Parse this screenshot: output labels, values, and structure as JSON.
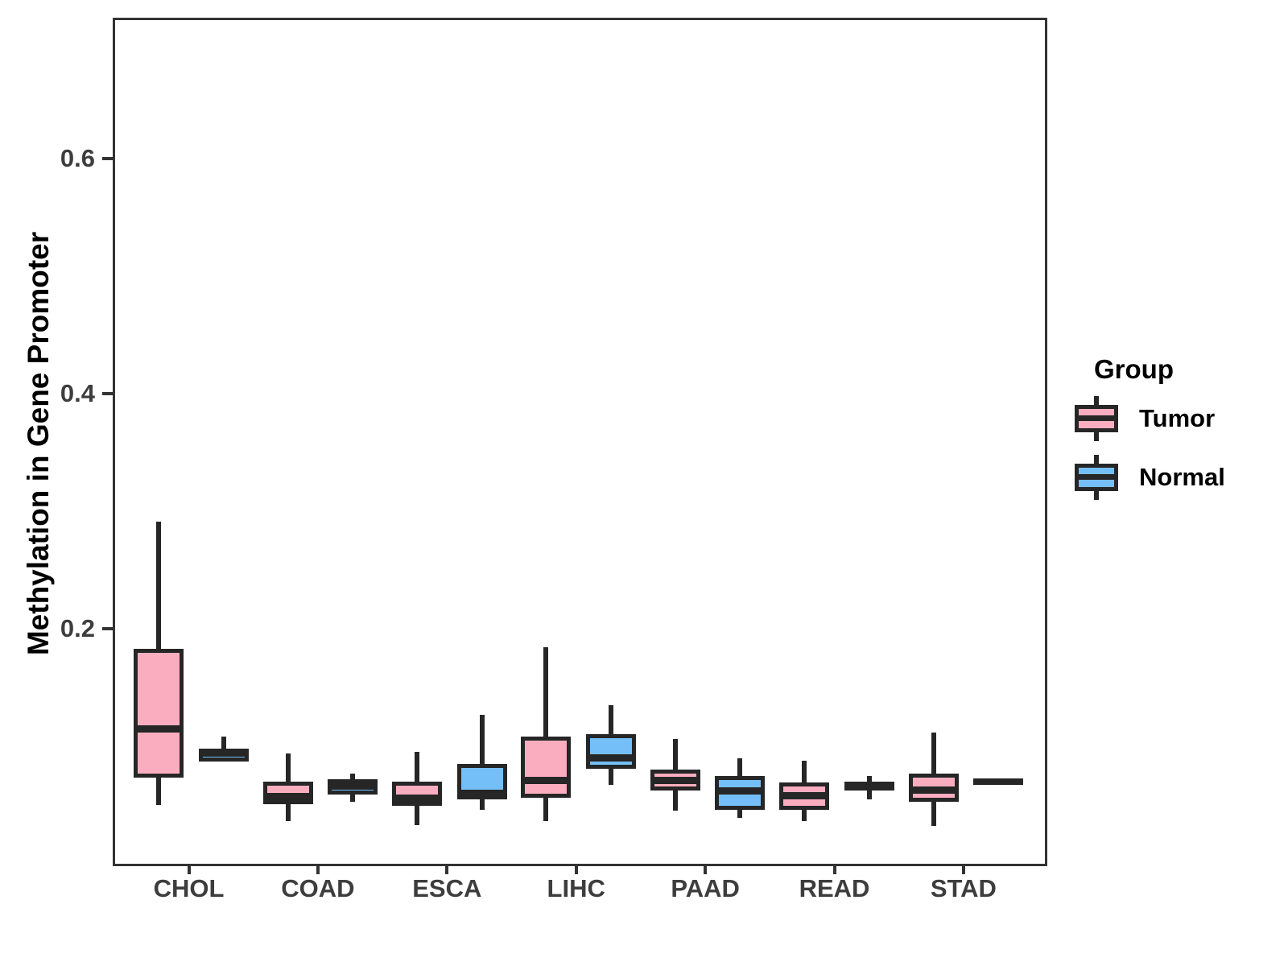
{
  "figure": {
    "background": "#ffffff",
    "panel_border_color": "#333333",
    "stroke_color": "#262626",
    "axis_text_color": "#3d3d3d"
  },
  "chart_data": {
    "type": "grouped_boxplot",
    "title": "",
    "xlabel": "",
    "ylabel": "Methylation in Gene Promoter",
    "categories": [
      "CHOL",
      "COAD",
      "ESCA",
      "LIHC",
      "PAAD",
      "READ",
      "STAD"
    ],
    "y_ticks": [
      0.2,
      0.4,
      0.6
    ],
    "y_tick_labels": [
      "0.2",
      "0.4",
      "0.6"
    ],
    "ylim": [
      0.002,
      0.72
    ],
    "grid": "off",
    "legend": {
      "title": "Group",
      "position": "right",
      "entries": [
        {
          "label": "Tumor",
          "color": "#FBADC0"
        },
        {
          "label": "Normal",
          "color": "#74BFF8"
        }
      ]
    },
    "series": [
      {
        "name": "Tumor",
        "color": "#FBADC0",
        "boxes": [
          {
            "category": "CHOL",
            "whisker_low": 0.052,
            "q1": 0.075,
            "median": 0.117,
            "q3": 0.185,
            "whisker_high": 0.293
          },
          {
            "category": "COAD",
            "whisker_low": 0.038,
            "q1": 0.053,
            "median": 0.059,
            "q3": 0.072,
            "whisker_high": 0.096
          },
          {
            "category": "ESCA",
            "whisker_low": 0.035,
            "q1": 0.051,
            "median": 0.058,
            "q3": 0.072,
            "whisker_high": 0.097
          },
          {
            "category": "LIHC",
            "whisker_low": 0.038,
            "q1": 0.058,
            "median": 0.073,
            "q3": 0.11,
            "whisker_high": 0.186
          },
          {
            "category": "PAAD",
            "whisker_low": 0.047,
            "q1": 0.064,
            "median": 0.073,
            "q3": 0.082,
            "whisker_high": 0.108
          },
          {
            "category": "READ",
            "whisker_low": 0.038,
            "q1": 0.048,
            "median": 0.06,
            "q3": 0.071,
            "whisker_high": 0.09
          },
          {
            "category": "STAD",
            "whisker_low": 0.034,
            "q1": 0.055,
            "median": 0.065,
            "q3": 0.079,
            "whisker_high": 0.114
          }
        ]
      },
      {
        "name": "Normal",
        "color": "#74BFF8",
        "boxes": [
          {
            "category": "CHOL",
            "whisker_low": 0.089,
            "q1": 0.089,
            "median": 0.096,
            "q3": 0.1,
            "whisker_high": 0.11
          },
          {
            "category": "COAD",
            "whisker_low": 0.055,
            "q1": 0.061,
            "median": 0.068,
            "q3": 0.074,
            "whisker_high": 0.079
          },
          {
            "category": "ESCA",
            "whisker_low": 0.048,
            "q1": 0.057,
            "median": 0.062,
            "q3": 0.087,
            "whisker_high": 0.129
          },
          {
            "category": "LIHC",
            "whisker_low": 0.069,
            "q1": 0.083,
            "median": 0.092,
            "q3": 0.112,
            "whisker_high": 0.137
          },
          {
            "category": "PAAD",
            "whisker_low": 0.041,
            "q1": 0.048,
            "median": 0.064,
            "q3": 0.077,
            "whisker_high": 0.092
          },
          {
            "category": "READ",
            "whisker_low": 0.057,
            "q1": 0.064,
            "median": 0.068,
            "q3": 0.072,
            "whisker_high": 0.077
          },
          {
            "category": "STAD",
            "whisker_low": 0.072,
            "q1": 0.072,
            "median": 0.072,
            "q3": 0.072,
            "whisker_high": 0.072
          }
        ]
      }
    ]
  }
}
